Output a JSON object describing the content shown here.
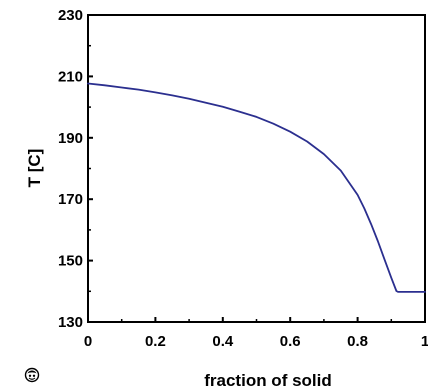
{
  "chart_data": {
    "type": "line",
    "title": "",
    "xlabel": "fraction of solid",
    "ylabel": "T [C]",
    "xlim": [
      0,
      1
    ],
    "ylim": [
      130,
      230
    ],
    "xticks": [
      0,
      0.2,
      0.4,
      0.6,
      0.8,
      1
    ],
    "xtick_labels": [
      "0",
      "0.2",
      "0.4",
      "0.6",
      "0.8",
      "1"
    ],
    "yticks": [
      130,
      150,
      170,
      190,
      210,
      230
    ],
    "ytick_labels": [
      "130",
      "150",
      "170",
      "190",
      "210",
      "230"
    ],
    "grid": false,
    "legend": "none",
    "series": [
      {
        "color": "#2b2f8f",
        "x": [
          0,
          0.05,
          0.1,
          0.15,
          0.2,
          0.25,
          0.3,
          0.35,
          0.4,
          0.45,
          0.5,
          0.55,
          0.6,
          0.65,
          0.7,
          0.75,
          0.8,
          0.82,
          0.84,
          0.86,
          0.88,
          0.9,
          0.915,
          0.92,
          0.95,
          1.0
        ],
        "y": [
          207.7,
          207.1,
          206.4,
          205.7,
          204.8,
          203.8,
          202.7,
          201.4,
          200.1,
          198.5,
          196.8,
          194.6,
          192.0,
          188.8,
          184.7,
          179.3,
          171.4,
          167.0,
          161.9,
          156.4,
          150.3,
          144.4,
          140.1,
          139.8,
          139.8,
          139.8
        ]
      }
    ]
  },
  "corner_mark": {
    "icon": "seal-icon",
    "color": "#000000"
  }
}
